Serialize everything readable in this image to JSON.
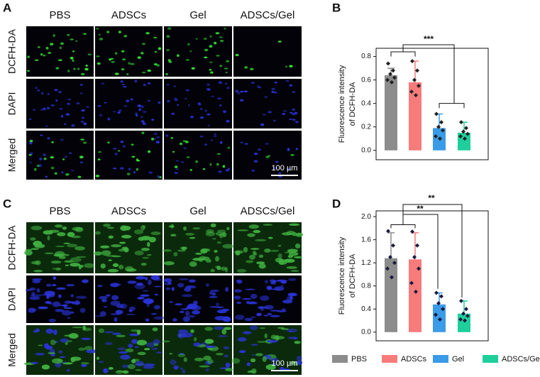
{
  "panel_a": {
    "label": "A",
    "columns": [
      "PBS",
      "ADSCs",
      "Gel",
      "ADSCs/Gel"
    ],
    "rows": [
      "DCFH-DA",
      "DAPI",
      "Merged"
    ],
    "scale_bar": "100 µm"
  },
  "panel_c": {
    "label": "C",
    "columns": [
      "PBS",
      "ADSCs",
      "Gel",
      "ADSCs/Gel"
    ],
    "rows": [
      "DCFH-DA",
      "DAPI",
      "Merged"
    ],
    "scale_bar": "100 µm"
  },
  "chart_data": [
    {
      "type": "bar",
      "panel": "B",
      "ylabel": [
        "Fluorescence intensity",
        "of DCFH-DA"
      ],
      "categories": [
        "PBS",
        "ADSCs",
        "Gel",
        "ADSCs/Gel"
      ],
      "values": [
        0.64,
        0.58,
        0.19,
        0.15
      ],
      "errors": [
        0.06,
        0.18,
        0.12,
        0.09
      ],
      "points": [
        [
          0.74,
          0.68,
          0.65,
          0.62,
          0.6,
          0.58
        ],
        [
          0.76,
          0.68,
          0.6,
          0.55,
          0.5,
          0.47
        ],
        [
          0.31,
          0.24,
          0.2,
          0.17,
          0.12,
          0.1
        ],
        [
          0.24,
          0.19,
          0.16,
          0.14,
          0.12,
          0.1
        ]
      ],
      "colors": [
        "#8c8c8c",
        "#f77b7b",
        "#3a9be8",
        "#1ecf9b"
      ],
      "ylim": [
        -0.08,
        0.87
      ],
      "yticks": [
        {
          "value": 0,
          "label": "0.0"
        },
        {
          "value": 0.2,
          "label": "0.2"
        },
        {
          "value": 0.4,
          "label": "0.4"
        },
        {
          "value": 0.6,
          "label": "0.6"
        },
        {
          "value": 0.8,
          "label": "0.8"
        }
      ],
      "annotations": [
        "***"
      ]
    },
    {
      "type": "bar",
      "panel": "D",
      "ylabel": [
        "Fluorescence intensity",
        "of DCFH-DA"
      ],
      "categories": [
        "PBS",
        "ADSCs",
        "Gel",
        "ADSCs/Gel"
      ],
      "values": [
        1.28,
        1.26,
        0.48,
        0.32
      ],
      "errors": [
        0.44,
        0.46,
        0.2,
        0.22
      ],
      "points": [
        [
          1.75,
          1.5,
          1.3,
          1.2,
          1.1,
          0.95
        ],
        [
          1.74,
          1.5,
          1.3,
          1.1,
          0.85,
          0.7
        ],
        [
          0.68,
          0.62,
          0.5,
          0.4,
          0.3,
          0.22
        ],
        [
          0.54,
          0.4,
          0.32,
          0.28,
          0.22,
          0.2
        ]
      ],
      "colors": [
        "#8c8c8c",
        "#f77b7b",
        "#3a9be8",
        "#1ecf9b"
      ],
      "ylim": [
        -0.15,
        2.1
      ],
      "yticks": [
        {
          "value": 0,
          "label": "0.0"
        },
        {
          "value": 0.4,
          "label": "0.4"
        },
        {
          "value": 0.8,
          "label": "0.8"
        },
        {
          "value": 1.2,
          "label": "1.2"
        },
        {
          "value": 1.6,
          "label": "1.6"
        },
        {
          "value": 2.0,
          "label": "2.0"
        }
      ],
      "annotations": [
        "**",
        "**"
      ]
    }
  ]
}
